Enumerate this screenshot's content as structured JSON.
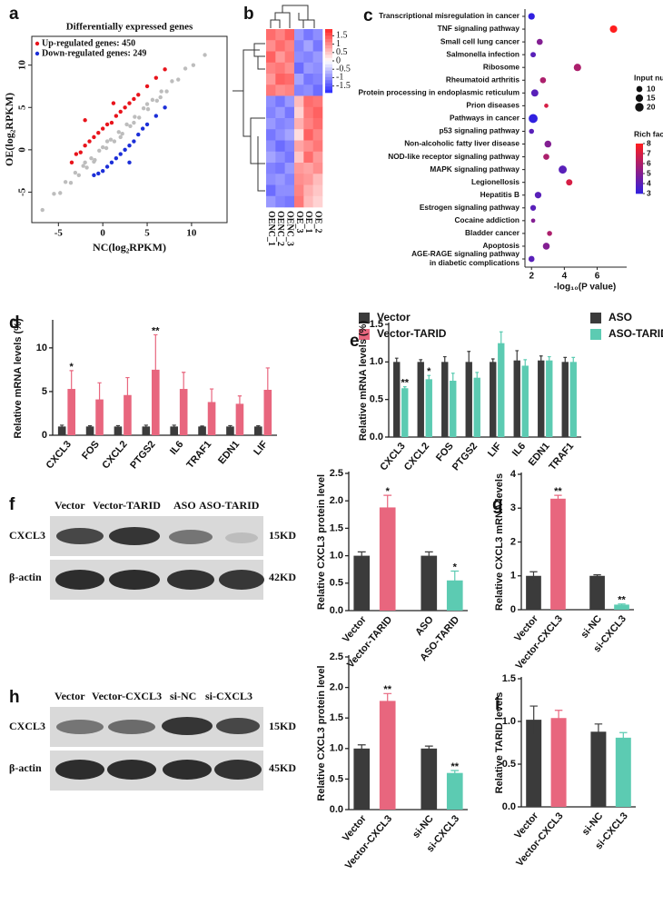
{
  "chart_data": [
    {
      "type": "scatter",
      "panel_label": "a",
      "title": "Differentially expressed genes",
      "xlabel": "NC(log₂RPKM)",
      "ylabel": "OE(log₂RPKM)",
      "xlim": [
        -8,
        14
      ],
      "ylim": [
        -8.6,
        13.4
      ],
      "xticks": [
        -5,
        0,
        5,
        10
      ],
      "yticks": [
        -5,
        0,
        5,
        10
      ],
      "series": [
        {
          "color": "#bdbdbd",
          "x": [
            -6.8,
            -5.5,
            -4.8,
            -4.2,
            -3.6,
            -3.1,
            -2.7,
            -2.2,
            -1.8,
            -1.3,
            -0.9,
            -0.4,
            0,
            0.4,
            0.9,
            1.3,
            1.8,
            2.2,
            2.7,
            3.1,
            3.6,
            4.1,
            4.6,
            5.1,
            5.6,
            6.1,
            6.6,
            7.2,
            7.8,
            8.5,
            9.3,
            10.2,
            11.5,
            -2,
            -1,
            0.5,
            2,
            3.5,
            5,
            6.5
          ],
          "values": [
            -7.1,
            -5.2,
            -5.1,
            -3.8,
            -3.9,
            -2.7,
            -3.0,
            -1.9,
            -2.1,
            -1.0,
            -1.2,
            -0.1,
            0.3,
            0.2,
            1.2,
            1.0,
            2.1,
            1.9,
            3.0,
            2.8,
            3.9,
            3.8,
            4.9,
            4.8,
            5.9,
            5.8,
            6.9,
            6.9,
            8.1,
            8.3,
            9.6,
            10.0,
            11.2,
            -1.5,
            -1.4,
            1.0,
            1.5,
            3.2,
            5.4,
            6.2
          ]
        },
        {
          "name": "Up-regulated genes: 450",
          "color": "#e8141c",
          "x": [
            -3.5,
            -3,
            -2.5,
            -2,
            -1.5,
            -1,
            -0.5,
            0,
            0.5,
            1,
            1.5,
            2,
            2.5,
            3,
            3.5,
            4,
            5,
            6,
            7,
            -2,
            1.2
          ],
          "values": [
            -1.5,
            -0.5,
            -0.3,
            0.5,
            1,
            1.5,
            2,
            2.5,
            3,
            3.2,
            4,
            4.5,
            5,
            5.5,
            6,
            6.5,
            7.5,
            8.5,
            9.5,
            3.5,
            5.5
          ]
        },
        {
          "name": "Down-regulated genes: 249",
          "color": "#1c2fd8",
          "x": [
            -1,
            -0.5,
            0,
            0.5,
            1,
            1.5,
            2,
            2.5,
            3,
            3.5,
            4,
            4.5,
            5,
            6,
            7,
            3
          ],
          "values": [
            -3,
            -2.8,
            -2.5,
            -2,
            -1.5,
            -1,
            -0.5,
            0,
            0.5,
            1,
            1.8,
            2.5,
            3,
            4,
            5,
            -1.5
          ]
        }
      ]
    },
    {
      "type": "heatmap",
      "panel_label": "b",
      "columns": [
        "OENC_1",
        "OENC_2",
        "OENC_3",
        "OE_3",
        "OE_1",
        "OE_2"
      ],
      "matrix": [
        [
          1.3,
          1.1,
          1.4,
          -0.9,
          -1.2,
          -1.0
        ],
        [
          1.0,
          1.3,
          1.1,
          -1.1,
          -0.8,
          -1.2
        ],
        [
          1.4,
          0.9,
          1.2,
          -1.0,
          -1.1,
          -0.9
        ],
        [
          1.1,
          1.2,
          1.0,
          -1.3,
          -0.9,
          -1.0
        ],
        [
          0.9,
          1.4,
          1.3,
          -0.8,
          -1.2,
          -1.1
        ],
        [
          1.2,
          1.0,
          1.1,
          -1.1,
          -1.0,
          -1.3
        ],
        [
          -1.0,
          -1.2,
          -0.9,
          0.6,
          1.3,
          1.2
        ],
        [
          -1.1,
          -0.9,
          -1.2,
          0.4,
          1.2,
          1.4
        ],
        [
          -0.9,
          -1.1,
          -1.0,
          0.7,
          1.1,
          1.3
        ],
        [
          -1.2,
          -1.0,
          -0.8,
          0.3,
          1.4,
          1.1
        ],
        [
          -1.0,
          -1.3,
          -1.1,
          0.8,
          1.0,
          1.2
        ],
        [
          -0.8,
          -1.0,
          -1.2,
          0.5,
          1.3,
          0.9
        ],
        [
          -1.1,
          -1.2,
          -0.9,
          0.9,
          0.8,
          1.0
        ],
        [
          -1.0,
          -0.9,
          -1.1,
          1.0,
          0.9,
          0.6
        ],
        [
          -1.3,
          -1.0,
          -1.0,
          1.1,
          0.7,
          0.5
        ],
        [
          -0.9,
          -1.1,
          -1.2,
          1.2,
          0.6,
          0.4
        ]
      ],
      "clim": [
        -1.9,
        1.9
      ],
      "colorbar_ticks": [
        1.5,
        1,
        0.5,
        0,
        -0.5,
        -1,
        -1.5
      ]
    },
    {
      "type": "bubble",
      "panel_label": "c",
      "xlabel": "-log₁₀(P value)",
      "categories": [
        "Transcriptional misregulation in cancer",
        "TNF signaling pathway",
        "Small cell lung cancer",
        "Salmonella infection",
        "Ribosome",
        "Rheumatoid arthritis",
        "Protein processing in endoplasmic reticulum",
        "Prion diseases",
        "Pathways in cancer",
        "p53 signaling pathway",
        "Non-alcoholic fatty liver disease",
        "NOD-like receptor signaling pathway",
        "MAPK signaling pathway",
        "Legionellosis",
        "Hepatitis B",
        "Estrogen signaling pathway",
        "Cocaine addiction",
        "Bladder cancer",
        "Apoptosis",
        "AGE-RAGE signaling pathway\nin diabetic complications"
      ],
      "x": [
        2.0,
        7.0,
        2.5,
        2.1,
        4.8,
        2.7,
        2.2,
        2.9,
        2.1,
        2.0,
        3.0,
        2.9,
        3.9,
        4.3,
        2.4,
        2.1,
        2.1,
        3.1,
        2.9,
        2.0
      ],
      "sizes": [
        12,
        15,
        10,
        8,
        15,
        10,
        14,
        5,
        22,
        7,
        13,
        10,
        18,
        11,
        12,
        9,
        5,
        7,
        13,
        10
      ],
      "rich_factor": [
        3,
        8,
        5,
        4,
        6,
        6,
        4,
        7,
        3,
        4,
        5,
        6,
        4,
        7,
        4,
        4,
        5,
        6,
        5,
        4
      ],
      "xlim": [
        1.6,
        7.8
      ],
      "xticks": [
        2,
        4,
        6
      ],
      "size_legend": {
        "title": "Input number",
        "values": [
          10,
          15,
          20
        ]
      },
      "color_legend": {
        "title": "Rich factor",
        "lim": [
          3,
          8
        ],
        "ticks": [
          8,
          7,
          6,
          5,
          4,
          3
        ]
      }
    },
    {
      "type": "bar",
      "panel_label": "d",
      "ylabel": "Relative mRNA levels (%)",
      "legend": "outside-right",
      "categories": [
        "CXCL3",
        "FOS",
        "CXCL2",
        "PTGS2",
        "IL6",
        "TRAF1",
        "EDN1",
        "LIF"
      ],
      "ylim": [
        0,
        13
      ],
      "yticks": [
        0,
        5,
        10
      ],
      "series": [
        {
          "name": "Vector",
          "color": "#3b3b3b",
          "values": [
            1,
            1,
            1,
            1,
            1,
            1,
            1,
            1
          ],
          "errors": [
            0.15,
            0.08,
            0.1,
            0.15,
            0.15,
            0.05,
            0.1,
            0.08
          ]
        },
        {
          "name": "Vector-TARID",
          "color": "#e8667e",
          "values": [
            5.3,
            4.1,
            4.6,
            7.5,
            5.3,
            3.8,
            3.6,
            5.2
          ],
          "errors": [
            2.1,
            1.9,
            2.0,
            4.0,
            1.9,
            1.5,
            0.9,
            2.5
          ],
          "annotations": [
            "*",
            null,
            null,
            "**",
            null,
            null,
            null,
            null
          ]
        }
      ]
    },
    {
      "type": "bar",
      "panel_label": "e",
      "ylabel": "Relative mRNA levels (%)",
      "legend": "outside-right",
      "categories": [
        "CXCL3",
        "CXCL2",
        "FOS",
        "PTGS2",
        "LIF",
        "IL6",
        "EDN1",
        "TRAF1"
      ],
      "ylim": [
        0,
        1.5
      ],
      "yticks": [
        {
          "value": 0,
          "label": "0.0"
        },
        {
          "value": 0.5,
          "label": "0.5"
        },
        {
          "value": 1,
          "label": "1.0"
        },
        {
          "value": 1.5,
          "label": "1.5"
        }
      ],
      "series": [
        {
          "name": "ASO",
          "color": "#3b3b3b",
          "values": [
            1.0,
            1.0,
            1.0,
            1.0,
            1.0,
            1.02,
            1.02,
            1.0
          ],
          "errors": [
            0.05,
            0.03,
            0.07,
            0.14,
            0.04,
            0.13,
            0.06,
            0.06
          ]
        },
        {
          "name": "ASO-TARID",
          "color": "#5ccbb2",
          "values": [
            0.65,
            0.77,
            0.75,
            0.79,
            1.25,
            0.95,
            1.02,
            1.0
          ],
          "errors": [
            0.02,
            0.05,
            0.1,
            0.07,
            0.15,
            0.08,
            0.05,
            0.06
          ],
          "annotations": [
            "**",
            "*",
            null,
            null,
            null,
            null,
            null,
            null
          ]
        }
      ]
    },
    {
      "type": "bar",
      "panel_label": "f",
      "ylabel": "Relative CXCL3 protein level",
      "blot": {
        "lanes": [
          "Vector",
          "Vector-TARID",
          "ASO",
          "ASO-TARID"
        ],
        "rows": [
          "CXCL3",
          "β-actin"
        ],
        "sizes": [
          "15KD",
          "42KD"
        ]
      },
      "categories": [
        "Vector",
        "Vector-TARID",
        "ASO",
        "ASO-TARID"
      ],
      "ylim": [
        0,
        2.5
      ],
      "yticks": [
        {
          "value": 0,
          "label": "0.0"
        },
        {
          "value": 0.5,
          "label": "0.5"
        },
        {
          "value": 1,
          "label": "1.0"
        },
        {
          "value": 1.5,
          "label": "1.5"
        },
        {
          "value": 2,
          "label": "2.0"
        },
        {
          "value": 2.5,
          "label": "2.5"
        }
      ],
      "series": [
        {
          "colors": [
            "#3b3b3b",
            "#e8667e",
            "#3b3b3b",
            "#5ccbb2"
          ],
          "values": [
            1.0,
            1.88,
            1.0,
            0.55
          ],
          "errors": [
            0.07,
            0.22,
            0.07,
            0.17
          ],
          "annotations": [
            null,
            "*",
            null,
            "*"
          ]
        }
      ]
    },
    {
      "type": "bar",
      "panel_label": "g",
      "ylabel": "Relative CXCL3 mRNA levels",
      "categories": [
        "Vector",
        "Vector-CXCL3",
        "si-NC",
        "si-CXCL3"
      ],
      "ylim": [
        0,
        4
      ],
      "yticks": [
        0,
        1,
        2,
        3,
        4
      ],
      "series": [
        {
          "colors": [
            "#3b3b3b",
            "#e8667e",
            "#3b3b3b",
            "#5ccbb2"
          ],
          "values": [
            1.0,
            3.28,
            1.0,
            0.15
          ],
          "errors": [
            0.12,
            0.1,
            0.03,
            0.02
          ],
          "annotations": [
            null,
            "**",
            null,
            "**"
          ]
        }
      ]
    },
    {
      "type": "bar",
      "panel_label": "h",
      "ylabel": "Relative CXCL3 protein level",
      "blot": {
        "lanes": [
          "Vector",
          "Vector-CXCL3",
          "si-NC",
          "si-CXCL3"
        ],
        "rows": [
          "CXCL3",
          "β-actin"
        ],
        "sizes": [
          "15KD",
          "45KD"
        ]
      },
      "categories": [
        "Vector",
        "Vector-CXCL3",
        "si-NC",
        "si-CXCL3"
      ],
      "ylim": [
        0,
        2.5
      ],
      "yticks": [
        {
          "value": 0,
          "label": "0.0"
        },
        {
          "value": 0.5,
          "label": "0.5"
        },
        {
          "value": 1,
          "label": "1.0"
        },
        {
          "value": 1.5,
          "label": "1.5"
        },
        {
          "value": 2,
          "label": "2.0"
        },
        {
          "value": 2.5,
          "label": "2.5"
        }
      ],
      "series": [
        {
          "colors": [
            "#3b3b3b",
            "#e8667e",
            "#3b3b3b",
            "#5ccbb2"
          ],
          "values": [
            1.0,
            1.78,
            1.0,
            0.6
          ],
          "errors": [
            0.06,
            0.12,
            0.04,
            0.04
          ],
          "annotations": [
            null,
            "**",
            null,
            "**"
          ]
        }
      ]
    },
    {
      "type": "bar",
      "panel_label": "i",
      "ylabel": "Relative TARID levels",
      "categories": [
        "Vector",
        "Vector-CXCL3",
        "si-NC",
        "si-CXCL3"
      ],
      "ylim": [
        0,
        1.5
      ],
      "yticks": [
        {
          "value": 0,
          "label": "0.0"
        },
        {
          "value": 0.5,
          "label": "0.5"
        },
        {
          "value": 1,
          "label": "1.0"
        },
        {
          "value": 1.5,
          "label": "1.5"
        }
      ],
      "series": [
        {
          "colors": [
            "#3b3b3b",
            "#e8667e",
            "#3b3b3b",
            "#5ccbb2"
          ],
          "values": [
            1.02,
            1.04,
            0.88,
            0.81
          ],
          "errors": [
            0.16,
            0.09,
            0.09,
            0.06
          ]
        }
      ]
    }
  ]
}
